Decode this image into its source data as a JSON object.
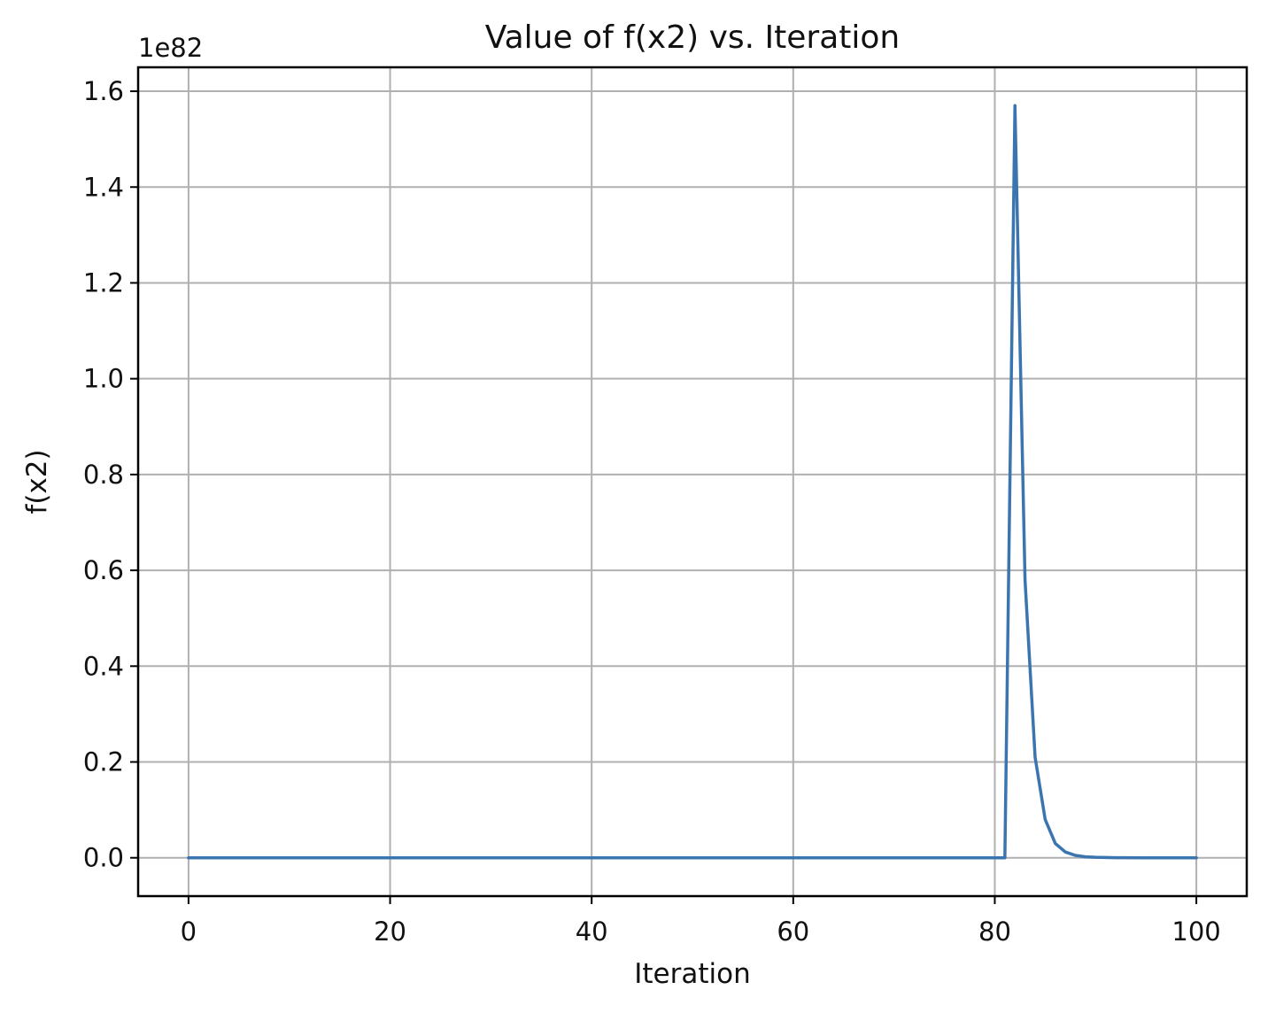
{
  "chart_data": {
    "type": "line",
    "title": "Value of f(x2) vs. Iteration",
    "xlabel": "Iteration",
    "ylabel": "f(x2)",
    "y_offset_label": "1e82",
    "y_scale_exponent": 82,
    "xlim": [
      -5,
      105
    ],
    "ylim": [
      -0.08,
      1.65
    ],
    "x_ticks": [
      0,
      20,
      40,
      60,
      80,
      100
    ],
    "x_tick_labels": [
      "0",
      "20",
      "40",
      "60",
      "80",
      "100"
    ],
    "y_ticks": [
      0.0,
      0.2,
      0.4,
      0.6,
      0.8,
      1.0,
      1.2,
      1.4,
      1.6
    ],
    "y_tick_labels": [
      "0.0",
      "0.2",
      "0.4",
      "0.6",
      "0.8",
      "1.0",
      "1.2",
      "1.4",
      "1.6"
    ],
    "grid": true,
    "series": [
      {
        "color": "#3b75af",
        "x": [
          0,
          10,
          20,
          30,
          40,
          50,
          60,
          70,
          80,
          81,
          82,
          83,
          84,
          85,
          86,
          87,
          88,
          89,
          90,
          92,
          95,
          100
        ],
        "y": [
          0,
          0,
          0,
          0,
          0,
          0,
          0,
          0,
          0,
          0.0,
          1.57,
          0.58,
          0.21,
          0.08,
          0.03,
          0.012,
          0.005,
          0.002,
          0.001,
          0.0002,
          0.0,
          0.0
        ]
      }
    ]
  }
}
